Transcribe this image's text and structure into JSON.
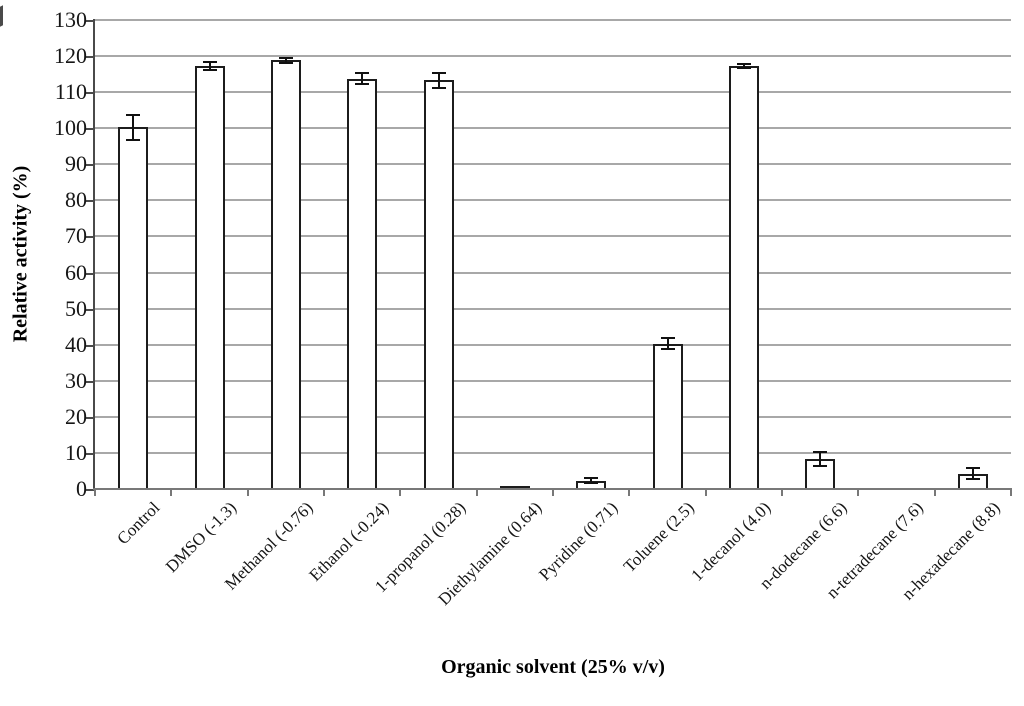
{
  "chart_data": {
    "type": "bar",
    "title": "",
    "xlabel": "Organic solvent (25% v/v)",
    "ylabel": "Relative activity (%)",
    "categories": [
      "Control",
      "DMSO (-1.3)",
      "Methanol (-0.76)",
      "Ethanol (-0.24)",
      "1-propanol (0.28)",
      "Diethylamine (0.64)",
      "Pyridine (0.71)",
      "Toluene (2.5)",
      "1-decanol (4.0)",
      "n-dodecane (6.6)",
      "n-tetradecane (7.6)",
      "n-hexadecane (8.8)"
    ],
    "values": [
      100,
      117,
      118.5,
      113.5,
      113,
      0.5,
      2,
      40,
      117,
      8,
      0,
      4
    ],
    "errors": [
      3.5,
      1,
      0.7,
      1.5,
      2,
      0,
      0.7,
      1.5,
      0.5,
      2,
      0,
      1.5
    ],
    "ylim": [
      0,
      130
    ],
    "yticks": [
      0,
      10,
      20,
      30,
      40,
      50,
      60,
      70,
      80,
      90,
      100,
      110,
      120,
      130
    ],
    "grid": "horizontal",
    "legend": "none",
    "colors": {
      "bar_fill": "#ffffff",
      "bar_border": "#1c1c1c",
      "error": "#111111",
      "gridline": "#a8a8a8",
      "x_axis": "#787878",
      "y_axis": "#4a4a4a",
      "text": "#161616"
    }
  }
}
